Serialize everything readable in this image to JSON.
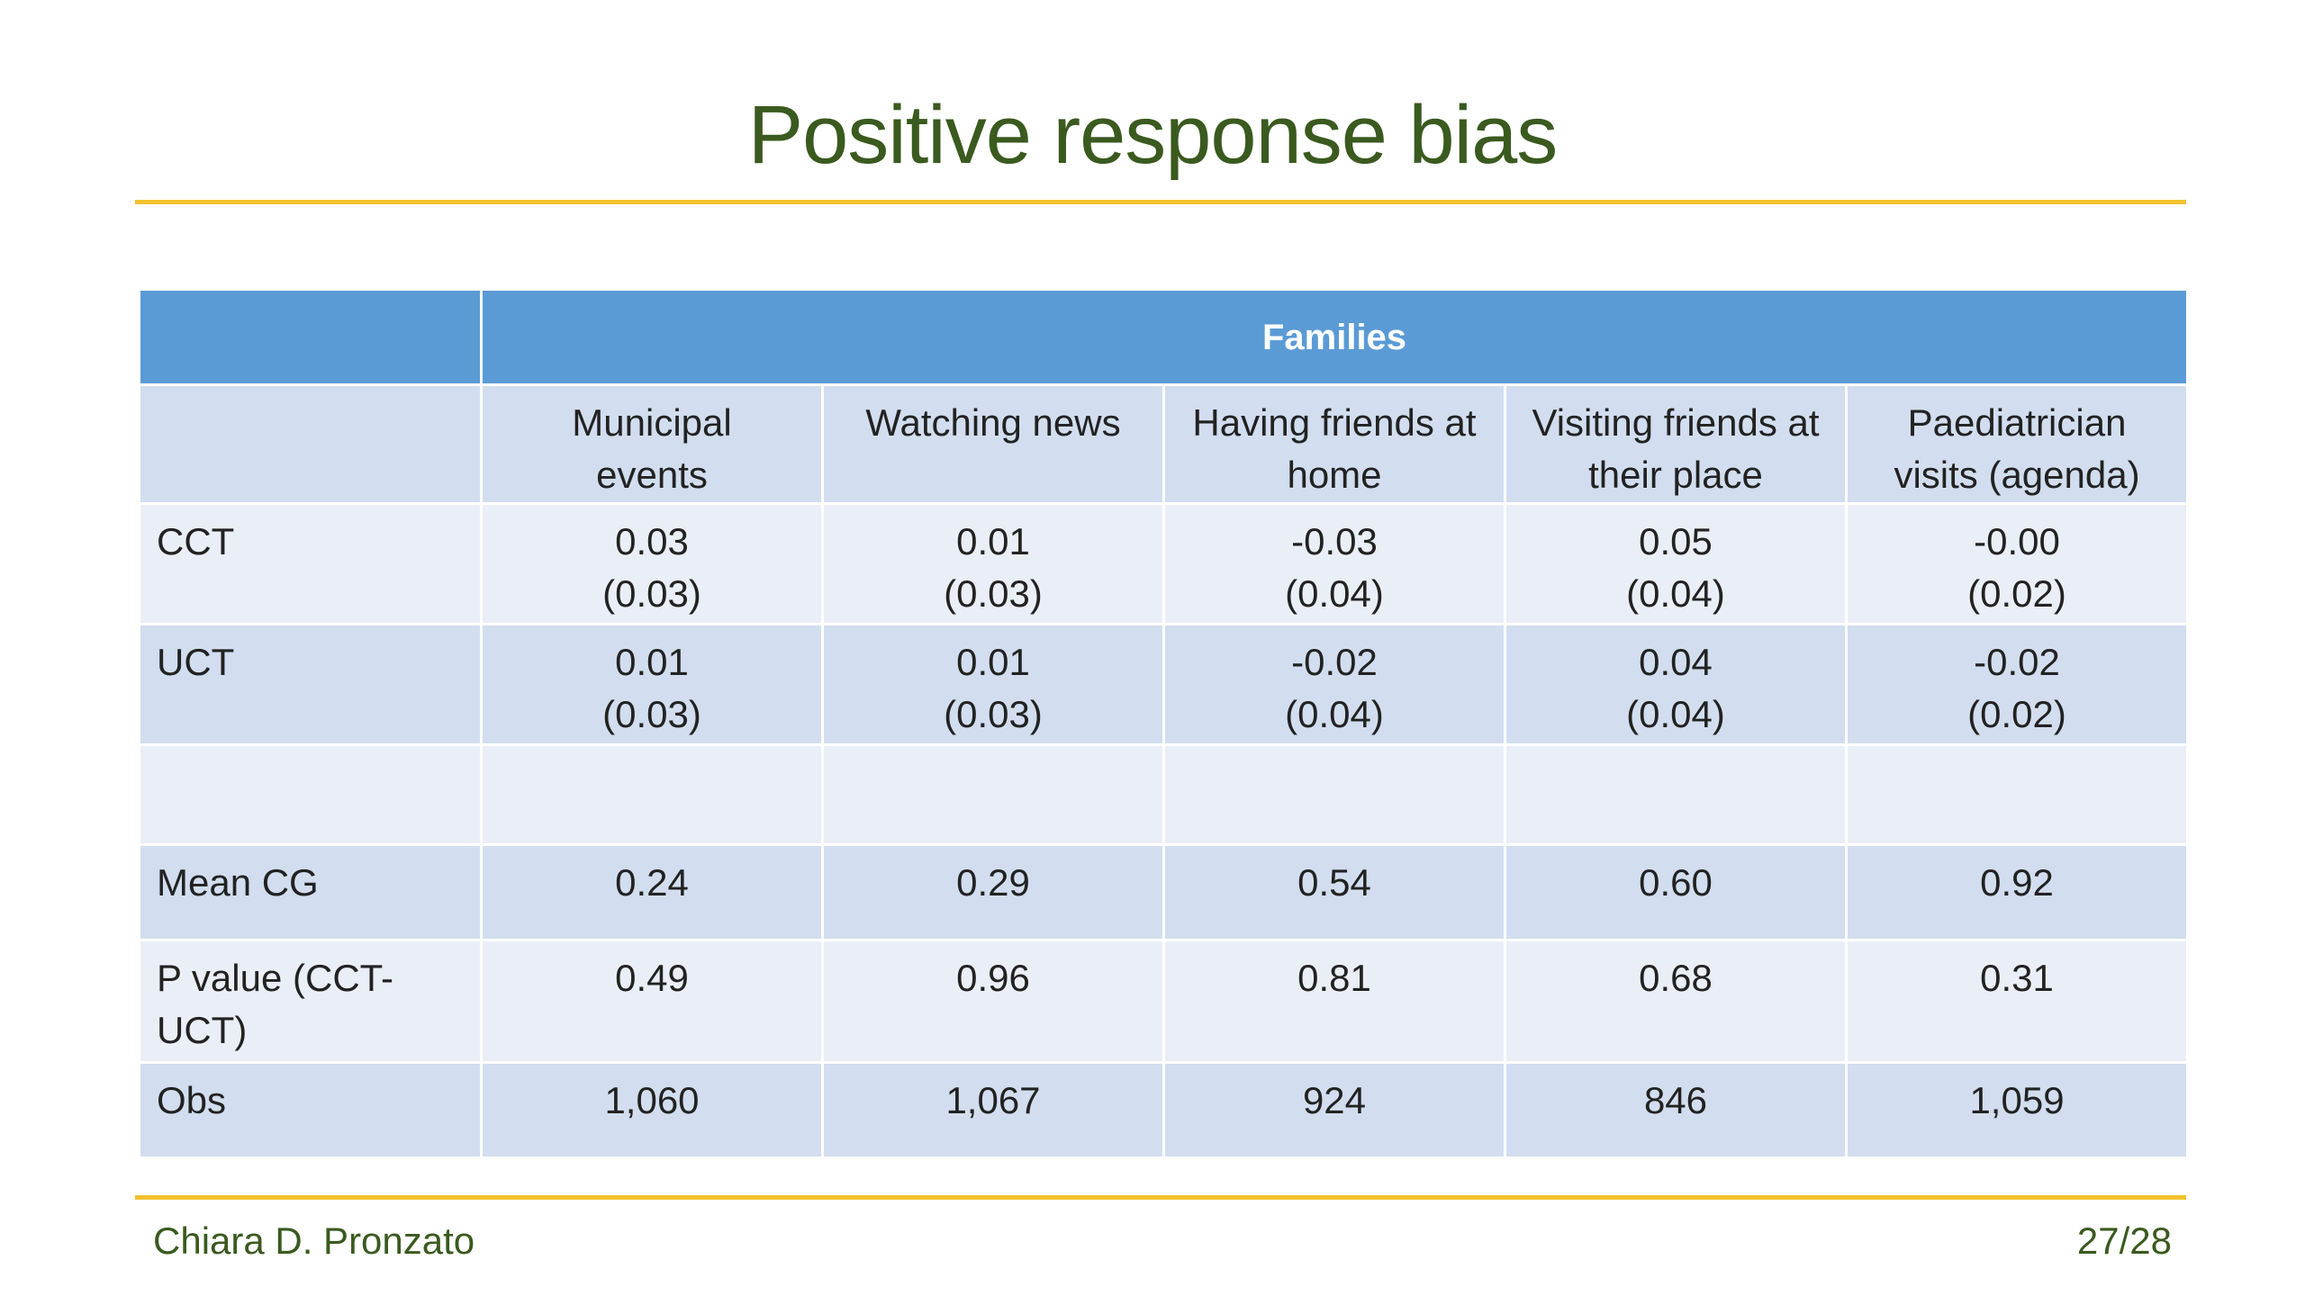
{
  "title": "Positive response bias",
  "table": {
    "group_header": "Families",
    "columns": [
      {
        "line1": "Municipal",
        "line2": "events"
      },
      {
        "line1": "Watching news",
        "line2": ""
      },
      {
        "line1": "Having friends at",
        "line2": "home"
      },
      {
        "line1": "Visiting friends at",
        "line2": "their place"
      },
      {
        "line1": "Paediatrician",
        "line2": "visits (agenda)"
      }
    ],
    "rows": {
      "cct": {
        "label": "CCT",
        "cells": [
          {
            "coef": "0.03",
            "se": "(0.03)"
          },
          {
            "coef": "0.01",
            "se": "(0.03)"
          },
          {
            "coef": "-0.03",
            "se": "(0.04)"
          },
          {
            "coef": "0.05",
            "se": "(0.04)"
          },
          {
            "coef": "-0.00",
            "se": "(0.02)"
          }
        ]
      },
      "uct": {
        "label": "UCT",
        "cells": [
          {
            "coef": "0.01",
            "se": "(0.03)"
          },
          {
            "coef": "0.01",
            "se": "(0.03)"
          },
          {
            "coef": "-0.02",
            "se": "(0.04)"
          },
          {
            "coef": "0.04",
            "se": "(0.04)"
          },
          {
            "coef": "-0.02",
            "se": "(0.02)"
          }
        ]
      },
      "mean_cg": {
        "label": "Mean CG",
        "values": [
          "0.24",
          "0.29",
          "0.54",
          "0.60",
          "0.92"
        ]
      },
      "p_value": {
        "label_line1": "P value (CCT-",
        "label_line2": "UCT)",
        "values": [
          "0.49",
          "0.96",
          "0.81",
          "0.68",
          "0.31"
        ]
      },
      "obs": {
        "label": "Obs",
        "values": [
          "1,060",
          "1,067",
          "924",
          "846",
          "1,059"
        ]
      }
    }
  },
  "footer": {
    "author": "Chiara D. Pronzato",
    "page": "27/28"
  },
  "colors": {
    "title": "#3a5a1f",
    "rule": "#f2c12e",
    "header_fill": "#5b9bd5",
    "row_dark": "#d2deef",
    "row_light": "#eaeff7"
  }
}
